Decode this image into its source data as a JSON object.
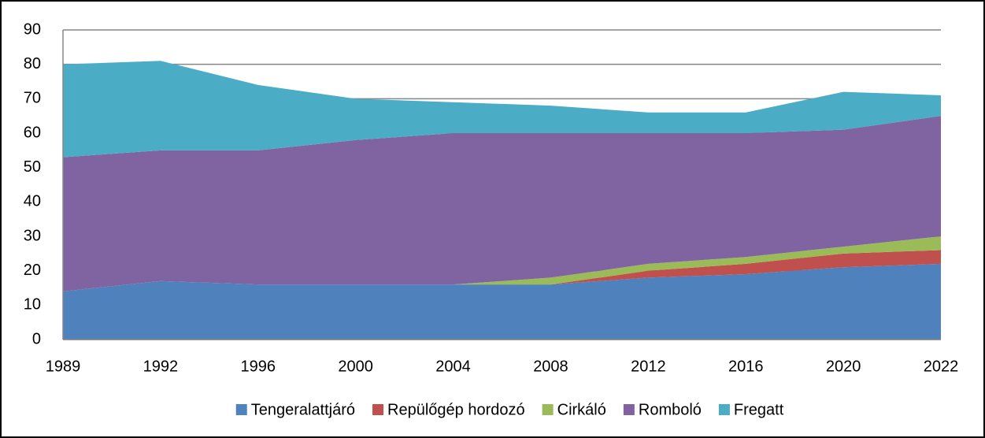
{
  "chart_data": {
    "type": "stacked_area",
    "categories": [
      "1989",
      "1992",
      "1996",
      "2000",
      "2004",
      "2008",
      "2012",
      "2016",
      "2020",
      "2022"
    ],
    "series": [
      {
        "name": "Tengeralattjáró",
        "color": "#4f81bd",
        "values": [
          14,
          17,
          16,
          16,
          16,
          16,
          18,
          19,
          21,
          22
        ]
      },
      {
        "name": "Repülőgép hordozó",
        "color": "#c0504d",
        "values": [
          0,
          0,
          0,
          0,
          0,
          0,
          2,
          3,
          4,
          4
        ]
      },
      {
        "name": "Cirkáló",
        "color": "#9bbb59",
        "values": [
          0,
          0,
          0,
          0,
          0,
          2,
          2,
          2,
          2,
          4
        ]
      },
      {
        "name": "Romboló",
        "color": "#8064a2",
        "values": [
          39,
          38,
          39,
          42,
          44,
          42,
          38,
          36,
          34,
          35
        ]
      },
      {
        "name": "Fregatt",
        "color": "#4bacc6",
        "values": [
          27,
          26,
          19,
          12,
          9,
          8,
          6,
          6,
          11,
          6
        ]
      }
    ],
    "ylim": [
      0,
      90
    ],
    "yticks": [
      0,
      10,
      20,
      30,
      40,
      50,
      60,
      70,
      80,
      90
    ],
    "grid": true,
    "legend": "bottom"
  }
}
